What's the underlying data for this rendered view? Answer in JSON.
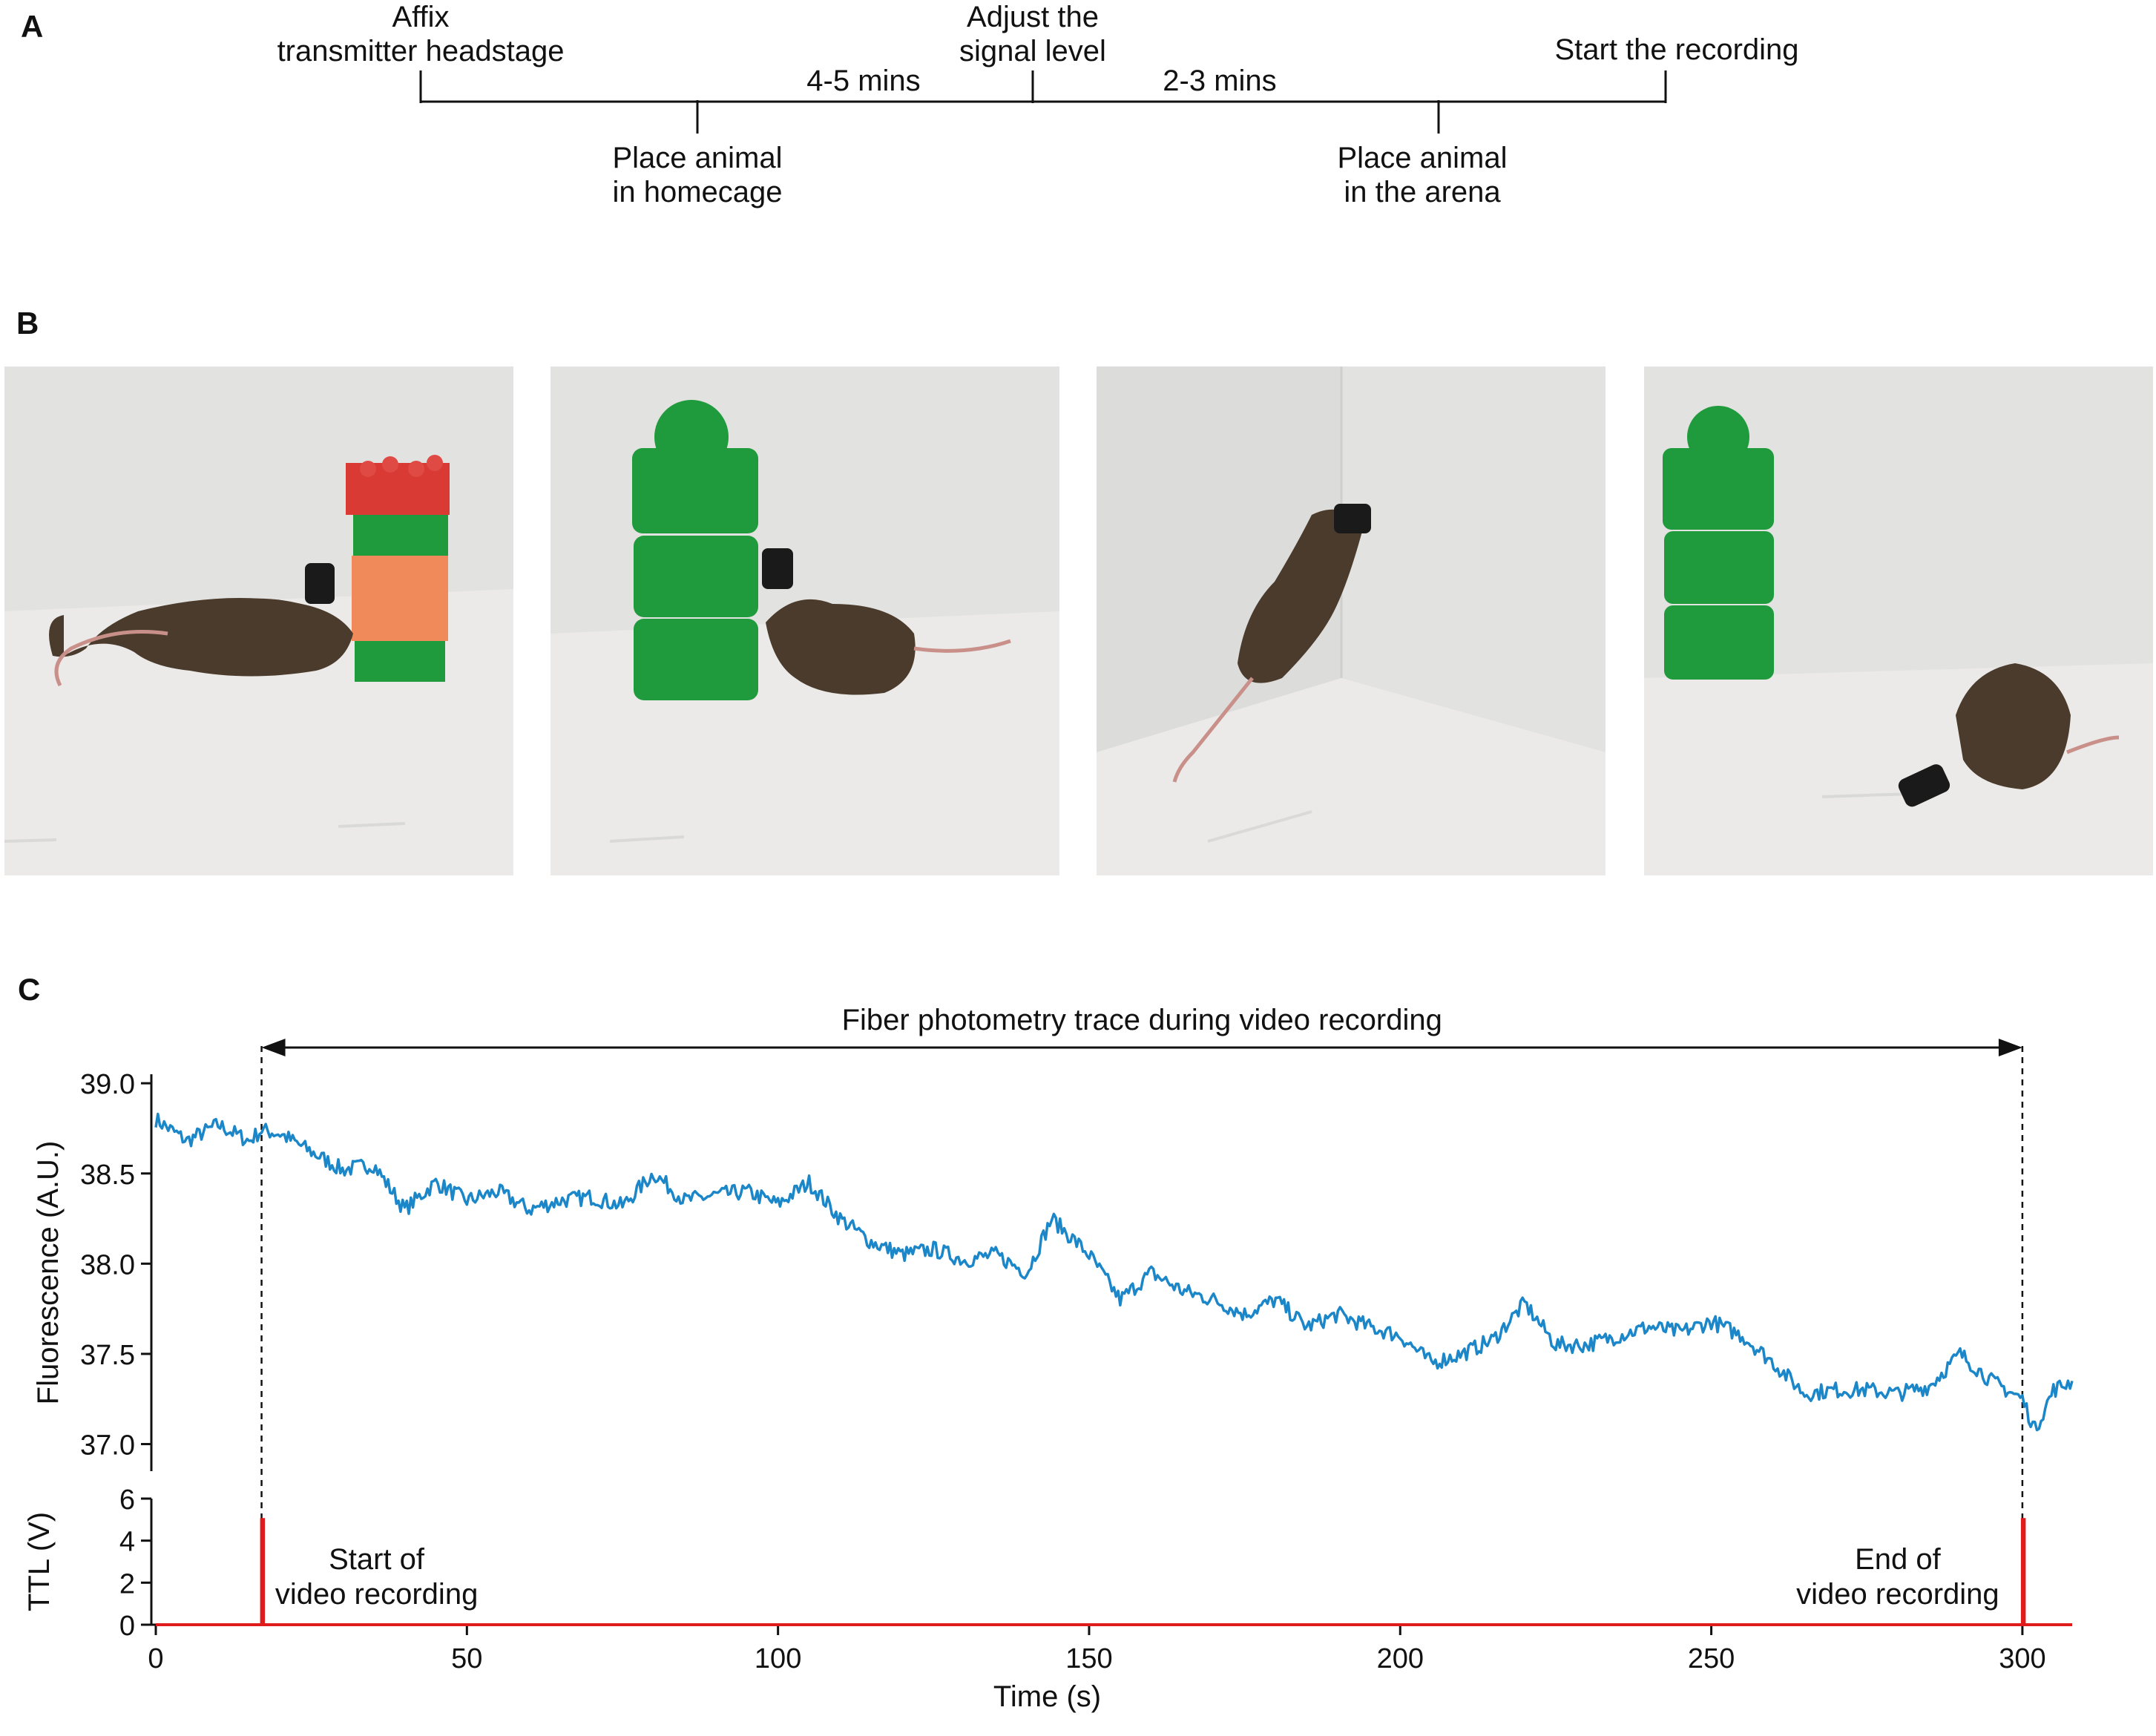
{
  "panels": {
    "a": "A",
    "b": "B",
    "c": "C"
  },
  "timeline": {
    "top_labels": [
      {
        "lines": [
          "Affix",
          "transmitter headstage"
        ]
      },
      {
        "lines": [
          "Adjust the",
          "signal level"
        ]
      },
      {
        "lines": [
          "Start the recording"
        ]
      }
    ],
    "bottom_labels": [
      {
        "lines": [
          "Place animal",
          "in homecage"
        ]
      },
      {
        "lines": [
          "Place animal",
          "in the arena"
        ]
      }
    ],
    "durations": [
      "4-5 mins",
      "2-3 mins"
    ]
  },
  "photos": {
    "colors": {
      "background": "#e3e3e1",
      "floor": "#ecebea",
      "mouse": "#4a3b2c",
      "transmitter": "#1a1a1a",
      "green_block": "#1f9a3c",
      "red_block": "#d93a34",
      "orange_block": "#f08a5a"
    }
  },
  "chart_data": [
    {
      "type": "line",
      "title": "Fiber photometry trace during video recording",
      "xlabel": "",
      "ylabel": "Fluorescence (A.U.)",
      "xlim": [
        0,
        308
      ],
      "ylim": [
        36.85,
        39.05
      ],
      "yticks": [
        37.0,
        37.5,
        38.0,
        38.5,
        39.0
      ],
      "color": "#1b87c9",
      "series": [
        {
          "name": "Fluorescence",
          "x": [
            0,
            5,
            10,
            15,
            17,
            20,
            25,
            30,
            35,
            40,
            45,
            50,
            55,
            60,
            65,
            70,
            75,
            80,
            85,
            90,
            95,
            100,
            105,
            110,
            115,
            120,
            125,
            130,
            135,
            140,
            144,
            150,
            155,
            160,
            165,
            170,
            175,
            180,
            185,
            190,
            195,
            200,
            205,
            210,
            215,
            220,
            225,
            230,
            235,
            240,
            245,
            250,
            255,
            260,
            265,
            270,
            275,
            280,
            285,
            290,
            295,
            300,
            302,
            305,
            308
          ],
          "y": [
            38.8,
            38.68,
            38.77,
            38.68,
            38.74,
            38.72,
            38.62,
            38.52,
            38.55,
            38.3,
            38.45,
            38.35,
            38.4,
            38.3,
            38.35,
            38.37,
            38.32,
            38.5,
            38.35,
            38.38,
            38.4,
            38.33,
            38.45,
            38.25,
            38.12,
            38.05,
            38.08,
            38.02,
            38.05,
            37.95,
            38.25,
            38.05,
            37.8,
            37.95,
            37.85,
            37.8,
            37.72,
            37.8,
            37.65,
            37.72,
            37.65,
            37.6,
            37.45,
            37.5,
            37.58,
            37.78,
            37.55,
            37.55,
            37.6,
            37.65,
            37.62,
            37.68,
            37.6,
            37.45,
            37.28,
            37.3,
            37.3,
            37.28,
            37.32,
            37.5,
            37.35,
            37.25,
            37.08,
            37.3,
            37.35
          ]
        }
      ],
      "annotations": [
        "Fiber photometry trace during video recording"
      ]
    },
    {
      "type": "line",
      "xlabel": "Time (s)",
      "ylabel": "TTL (V)",
      "xlim": [
        0,
        308
      ],
      "ylim": [
        0,
        6
      ],
      "xticks": [
        0,
        50,
        100,
        150,
        200,
        250,
        300
      ],
      "yticks": [
        0,
        2,
        4,
        6
      ],
      "color": "#e01b1b",
      "series": [
        {
          "name": "TTL",
          "x": [
            0,
            17,
            17,
            17.3,
            17.3,
            300,
            300,
            300.3,
            300.3,
            308
          ],
          "y": [
            0,
            0,
            5,
            5,
            0,
            0,
            5,
            5,
            0,
            0
          ]
        }
      ],
      "markers": [
        {
          "x": 17,
          "lines": [
            "Start of",
            "video recording"
          ]
        },
        {
          "x": 300,
          "lines": [
            "End of",
            "video recording"
          ]
        }
      ]
    }
  ]
}
